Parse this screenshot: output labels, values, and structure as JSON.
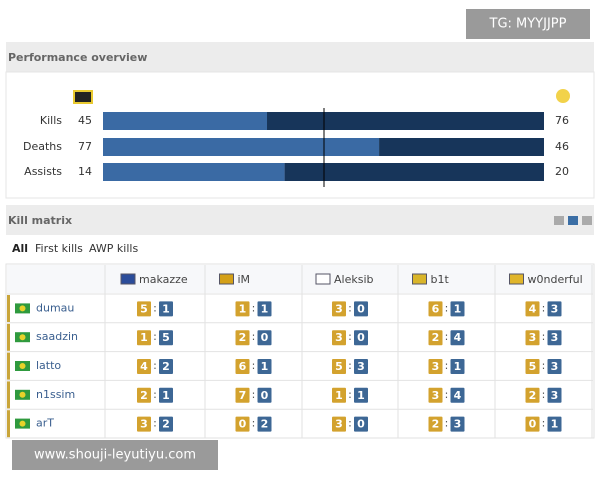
{
  "watermark": "TG: MYYJJPP",
  "overview": {
    "title": "Performance overview",
    "rows": [
      {
        "label": "Kills",
        "left": 45,
        "right": 76
      },
      {
        "label": "Deaths",
        "left": 77,
        "right": 46
      },
      {
        "label": "Assists",
        "left": 14,
        "right": 20
      }
    ]
  },
  "kill_matrix": {
    "title": "Kill matrix",
    "tabs": [
      "All",
      "First kills",
      "AWP kills"
    ],
    "separator": ":",
    "columns": [
      "makazze",
      "iM",
      "Aleksib",
      "b1t",
      "w0nderful"
    ],
    "rows": [
      {
        "player": "dumau",
        "cells": [
          [
            5,
            1
          ],
          [
            1,
            1
          ],
          [
            3,
            0
          ],
          [
            6,
            1
          ],
          [
            4,
            3
          ]
        ]
      },
      {
        "player": "saadzin",
        "cells": [
          [
            1,
            5
          ],
          [
            2,
            0
          ],
          [
            3,
            0
          ],
          [
            2,
            4
          ],
          [
            3,
            3
          ]
        ]
      },
      {
        "player": "latto",
        "cells": [
          [
            4,
            2
          ],
          [
            6,
            1
          ],
          [
            5,
            3
          ],
          [
            3,
            1
          ],
          [
            5,
            3
          ]
        ]
      },
      {
        "player": "n1ssim",
        "cells": [
          [
            2,
            1
          ],
          [
            7,
            0
          ],
          [
            1,
            1
          ],
          [
            3,
            4
          ],
          [
            2,
            3
          ]
        ]
      },
      {
        "player": "arT",
        "cells": [
          [
            3,
            2
          ],
          [
            0,
            2
          ],
          [
            3,
            0
          ],
          [
            2,
            3
          ],
          [
            0,
            1
          ]
        ]
      }
    ]
  },
  "footer_watermark": "www.shouji-leyutiyu.com"
}
